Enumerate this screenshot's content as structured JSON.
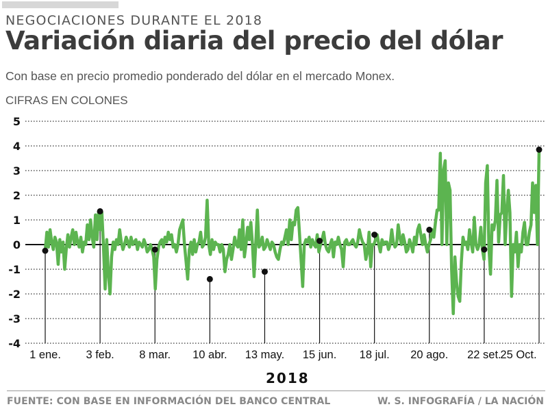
{
  "header": {
    "kicker": "NEGOCIACIONES DURANTE EL 2018",
    "title": "Variación diaria del precio del dólar",
    "subtitle": "Con base en precio promedio ponderado del dólar en el mercado Monex.",
    "units": "CIFRAS EN COLONES"
  },
  "footer": {
    "source": "FUENTE: CON BASE EN INFORMACIÓN DEL BANCO CENTRAL",
    "credit": "W. S. INFOGRAFÍA / LA NACIÓN"
  },
  "colors": {
    "line": "#5cb450",
    "marker": "#111111",
    "title": "#3c3c3c",
    "muted": "#888888"
  },
  "chart_data": {
    "type": "line",
    "title": "Variación diaria del precio del dólar",
    "xlabel": "2018",
    "ylabel": "CIFRAS EN COLONES",
    "ylim": [
      -4,
      5
    ],
    "yticks": [
      "5",
      "4",
      "3",
      "2",
      "1",
      "0",
      "-1",
      "-2",
      "-3",
      "-4"
    ],
    "ytick_values": [
      5,
      4,
      3,
      2,
      1,
      0,
      -1,
      -2,
      -3,
      -4
    ],
    "grid": "horizontal-dotted",
    "x_range_days": [
      0,
      297
    ],
    "marked_dates": [
      {
        "label": "1 ene.",
        "day": 0,
        "value": -0.25
      },
      {
        "label": "3 feb.",
        "day": 33,
        "value": 1.35
      },
      {
        "label": "8 mar.",
        "day": 66,
        "value": -0.2
      },
      {
        "label": "10 abr.",
        "day": 99,
        "value": -1.4
      },
      {
        "label": "13 may.",
        "day": 132,
        "value": -1.1
      },
      {
        "label": "15 jun.",
        "day": 165,
        "value": 0.15
      },
      {
        "label": "18 jul.",
        "day": 198,
        "value": 0.4
      },
      {
        "label": "20 ago.",
        "day": 231,
        "value": 0.6
      },
      {
        "label": "22 set.",
        "day": 264,
        "value": -0.2
      },
      {
        "label": "25 Oct.",
        "day": 297,
        "value": 3.85
      }
    ],
    "series": [
      {
        "name": "Variación diaria",
        "values": [
          -0.25,
          0.5,
          -0.1,
          0.6,
          0.1,
          -0.2,
          0.3,
          0.1,
          -0.8,
          0.2,
          -0.3,
          0.1,
          -1.0,
          -0.2,
          0.4,
          -0.1,
          0.3,
          0.6,
          0.0,
          0.5,
          0.1,
          -0.1,
          0.3,
          -0.3,
          0.1,
          0.0,
          0.8,
          0.2,
          1.0,
          0.3,
          -0.1,
          1.2,
          0.2,
          1.35,
          0.6,
          1.3,
          -0.1,
          -1.8,
          0.2,
          -1.2,
          -2.0,
          -0.5,
          0.1,
          -0.2,
          0.2,
          0.0,
          0.6,
          0.1,
          -0.2,
          0.0,
          0.3,
          0.1,
          -0.1,
          0.3,
          0.0,
          0.1,
          0.2,
          -0.2,
          0.1,
          0.0,
          -0.1,
          0.2,
          0.0,
          -0.3,
          -0.2,
          0.0,
          -0.2,
          -0.5,
          -1.8,
          -0.6,
          -0.1,
          0.1,
          0.2,
          -0.1,
          0.3,
          0.1,
          0.5,
          0.2,
          0.4,
          -0.1,
          0.0,
          -0.3,
          0.0,
          0.6,
          0.8,
          1.0,
          0.0,
          -0.7,
          -1.4,
          -0.2,
          0.1,
          -0.4,
          0.2,
          -0.3,
          0.0,
          0.1,
          0.5,
          -0.1,
          0.0,
          0.3,
          1.8,
          0.0,
          -0.4,
          0.2,
          -0.2,
          0.1,
          0.0,
          0.0,
          -0.3,
          0.0,
          -0.2,
          -1.1,
          -0.6,
          -0.4,
          0.0,
          -0.6,
          -0.2,
          0.3,
          0.0,
          -0.1,
          0.6,
          -0.2,
          1.0,
          -0.5,
          0.0,
          0.7,
          0.2,
          0.9,
          0.0,
          -1.3,
          0.0,
          1.4,
          -0.1,
          0.0,
          0.3,
          -0.2,
          -0.1,
          0.2,
          0.0,
          -0.2,
          0.1,
          0.0,
          -0.3,
          -0.5,
          -0.6,
          -0.2,
          0.1,
          0.0,
          0.3,
          0.6,
          0.0,
          1.0,
          0.2,
          0.9,
          0.8,
          1.4,
          1.5,
          0.5,
          -0.6,
          -1.7,
          0.0,
          0.2,
          0.1,
          0.3,
          -0.1,
          0.2,
          0.0,
          -0.1,
          0.4,
          -0.3,
          0.0,
          0.2,
          0.5,
          0.0,
          -0.2,
          -0.3,
          0.0,
          0.2,
          -0.5,
          0.1,
          0.0,
          0.3,
          0.0,
          -0.2,
          -0.9,
          0.1,
          0.2,
          0.0,
          0.0,
          0.1,
          0.2,
          0.0,
          -0.1,
          0.1,
          0.6,
          0.3,
          0.1,
          0.0,
          -0.6,
          -0.3,
          0.5,
          -0.9,
          0.0,
          0.0,
          0.2,
          0.4,
          0.0,
          -0.3,
          0.2,
          0.0,
          0.1,
          0.1,
          -0.2,
          0.0,
          0.6,
          0.1,
          -0.1,
          0.0,
          0.8,
          0.3,
          0.0,
          0.4,
          0.1,
          -0.3,
          -0.2,
          0.2,
          0.0,
          -0.3,
          0.3,
          0.0,
          0.6,
          0.8,
          0.4,
          0.0,
          0.4,
          0.0,
          -0.3,
          0.0,
          0.2,
          0.6,
          0.3,
          0.9,
          1.4,
          1.4,
          3.7,
          0.0,
          3.0,
          3.4,
          0.0,
          2.5,
          2.2,
          -1.0,
          -2.8,
          -0.5,
          -1.5,
          -2.1,
          -2.3,
          -0.7,
          0.3,
          0.0,
          0.1,
          -0.2,
          0.6,
          0.1,
          -0.3,
          1.1,
          0.0,
          -0.2,
          0.0,
          0.7,
          -0.2,
          -0.6,
          2.5,
          3.2,
          -0.1,
          -1.2,
          0.8,
          0.6,
          1.0,
          2.6,
          0.1,
          1.2,
          1.3,
          2.8,
          0.0,
          1.3,
          2.2,
          1.3,
          -2.1,
          0.0,
          -0.3,
          0.5,
          -0.9,
          0.0,
          -0.3,
          0.5,
          0.9,
          0.0,
          0.0,
          0.5,
          0.8,
          2.5,
          1.3,
          2.4,
          0.0,
          3.85
        ]
      }
    ]
  }
}
